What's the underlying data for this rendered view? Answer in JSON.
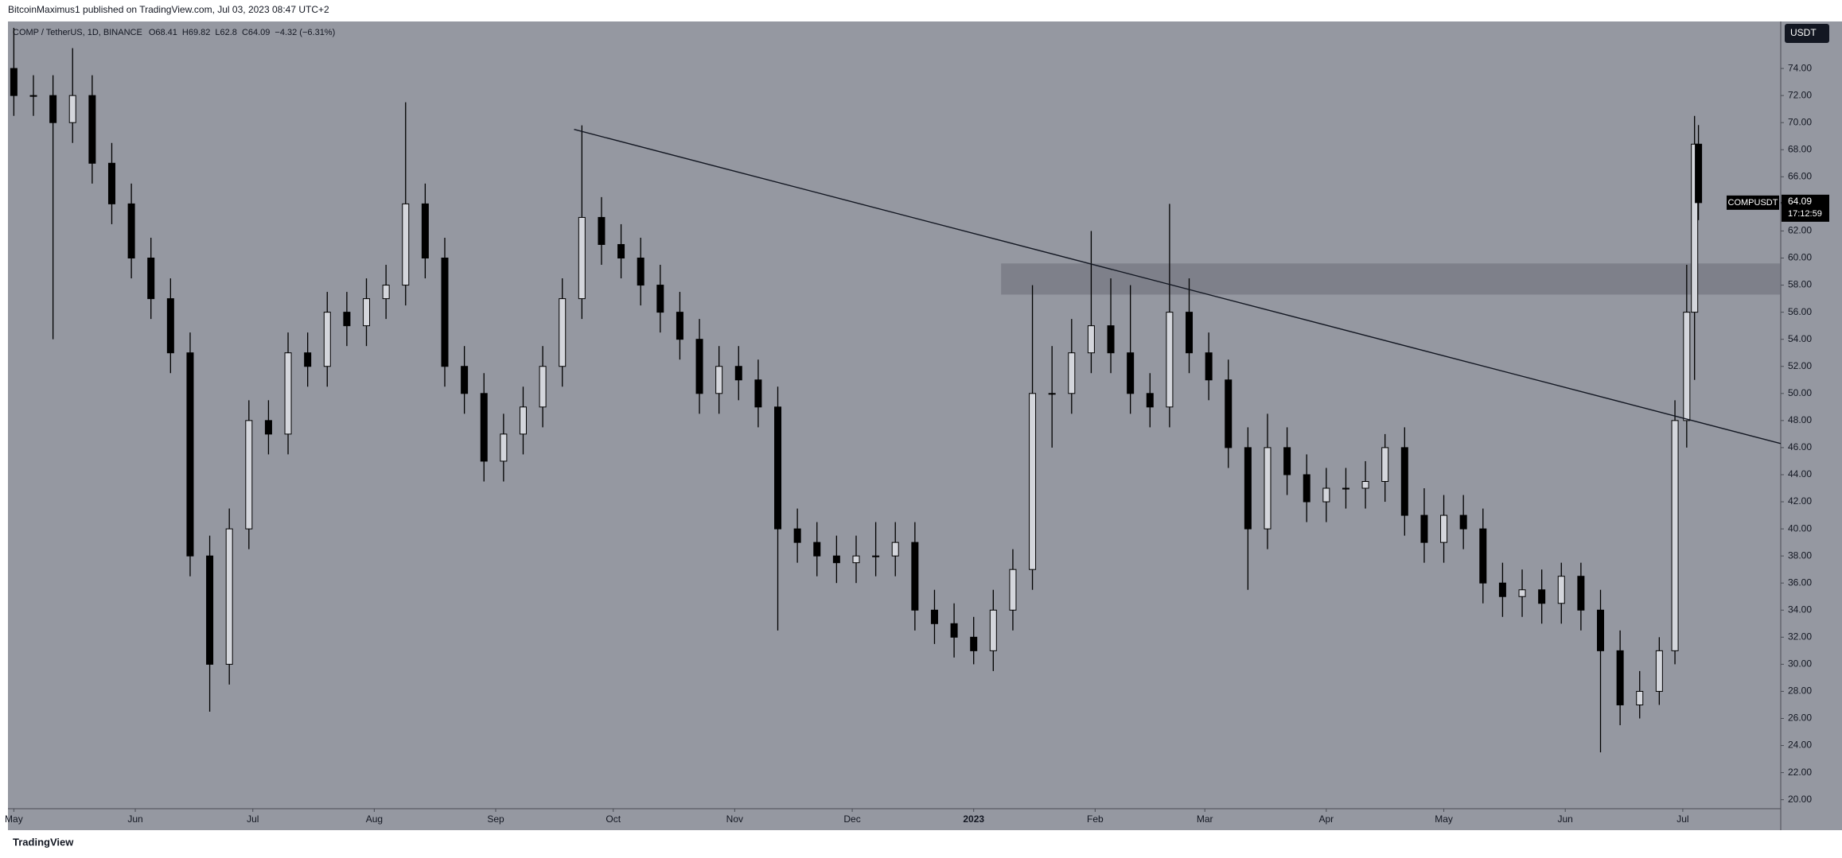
{
  "chart_data": {
    "type": "candlestick",
    "header": "BitcoinMaximus1 published on TradingView.com, Jul 03, 2023 08:47 UTC+2",
    "legend": {
      "symbol": "COMP / TetherUS, 1D, BINANCE",
      "items": [
        {
          "label": "O",
          "value": 68.41
        },
        {
          "label": "H",
          "value": 69.82
        },
        {
          "label": "L",
          "value": 62.8
        },
        {
          "label": "C",
          "value": 64.09
        }
      ],
      "change": "−4.32 (−6.31%)"
    },
    "currency": "USDT",
    "price_label": {
      "name": "COMPUSDT",
      "value": 64.09,
      "countdown": "17:12:59"
    },
    "footer": "TradingView",
    "background": "#9598a1",
    "up_color": "#d4d6dc",
    "down_color": "#000000",
    "x": [
      0,
      5,
      10,
      15,
      20,
      25,
      30,
      35,
      40,
      45,
      50,
      55,
      60,
      65,
      70,
      75,
      80,
      85,
      90,
      95,
      100,
      105,
      110,
      115,
      120,
      125,
      130,
      135,
      140,
      145,
      150,
      155,
      160,
      165,
      170,
      175,
      180,
      185,
      190,
      195,
      200,
      205,
      210,
      215,
      220,
      225,
      230,
      235,
      240,
      245,
      250,
      255,
      260,
      265,
      270,
      275,
      280,
      285,
      290,
      295,
      300,
      305,
      310,
      315,
      320,
      325,
      330,
      335,
      340,
      345,
      350,
      355,
      360,
      365,
      370,
      375,
      380,
      385,
      390,
      395,
      400,
      405,
      410,
      415,
      420,
      424,
      427,
      429,
      430
    ],
    "open": [
      74,
      72,
      72,
      70,
      72,
      67,
      64,
      60,
      57,
      53,
      38,
      30,
      40,
      48,
      47,
      53,
      52,
      56,
      55,
      57,
      58,
      64,
      60,
      52,
      50,
      45,
      47,
      49,
      52,
      57,
      63,
      61,
      60,
      58,
      56,
      54,
      50,
      52,
      51,
      49,
      40,
      39,
      38,
      37.5,
      38,
      38,
      39,
      34,
      33,
      32,
      31,
      34,
      37,
      50,
      50,
      53,
      55,
      53,
      50,
      49,
      56,
      53,
      51,
      46,
      40,
      46,
      44,
      42,
      43,
      43,
      43.5,
      46,
      41,
      39,
      41,
      40,
      36,
      35,
      35.5,
      34.5,
      36.5,
      34,
      31,
      27,
      28,
      31,
      48,
      56,
      68.41
    ],
    "high": [
      77,
      73.5,
      73.5,
      75.5,
      73.5,
      68.5,
      65.5,
      61.5,
      58.5,
      54.5,
      39.5,
      41.5,
      49.5,
      49.5,
      54.5,
      54.5,
      57.5,
      57.5,
      58.5,
      59.5,
      71.5,
      65.5,
      61.5,
      53.5,
      51.5,
      48.5,
      50.5,
      53.5,
      58.5,
      69.8,
      64.5,
      62.5,
      61.5,
      59.5,
      57.5,
      55.5,
      53.5,
      53.5,
      52.5,
      50.5,
      41.5,
      40.5,
      39.5,
      39.5,
      40.5,
      40.5,
      40.5,
      35.5,
      34.5,
      33.5,
      35.5,
      38.5,
      58,
      53.5,
      55.5,
      62,
      58.5,
      58,
      51.5,
      64,
      58.5,
      54.5,
      52.5,
      47.5,
      48.5,
      47.5,
      45.5,
      44.5,
      44.5,
      45,
      47,
      47.5,
      43,
      42.5,
      42.5,
      41.5,
      37.5,
      37,
      37,
      37.5,
      37.5,
      35.5,
      32.5,
      29.5,
      32,
      49.5,
      59.5,
      70.5,
      69.82
    ],
    "low": [
      70.5,
      70.5,
      54,
      68.5,
      65.5,
      62.5,
      58.5,
      55.5,
      51.5,
      36.5,
      26.5,
      28.5,
      38.5,
      45.5,
      45.5,
      50.5,
      50.5,
      53.5,
      53.5,
      55.5,
      56.5,
      58.5,
      50.5,
      48.5,
      43.5,
      43.5,
      45.5,
      47.5,
      50.5,
      55.5,
      59.5,
      58.5,
      56.5,
      54.5,
      52.5,
      48.5,
      48.5,
      49.5,
      47.5,
      32.5,
      37.5,
      36.5,
      36,
      36,
      36.5,
      36.5,
      32.5,
      31.5,
      30.5,
      30,
      29.5,
      32.5,
      35.5,
      46,
      48.5,
      51.5,
      51.5,
      48.5,
      47.5,
      47.5,
      51.5,
      49.5,
      44.5,
      35.5,
      38.5,
      42.5,
      40.5,
      40.5,
      41.5,
      41.5,
      42,
      39.5,
      37.5,
      37.5,
      38.5,
      34.5,
      33.5,
      33.5,
      33,
      33,
      32.5,
      23.5,
      25.5,
      26,
      27,
      30,
      46,
      51,
      62.8
    ],
    "close": [
      72,
      72,
      70,
      72,
      67,
      64,
      60,
      57,
      53,
      38,
      30,
      40,
      48,
      47,
      53,
      52,
      56,
      55,
      57,
      58,
      64,
      60,
      52,
      50,
      45,
      47,
      49,
      52,
      57,
      63,
      61,
      60,
      58,
      56,
      54,
      50,
      52,
      51,
      49,
      40,
      39,
      38,
      37.5,
      38,
      38,
      39,
      34,
      33,
      32,
      31,
      34,
      37,
      50,
      50,
      53,
      55,
      53,
      50,
      49,
      56,
      53,
      51,
      46,
      40,
      46,
      44,
      42,
      43,
      43,
      43.5,
      46,
      41,
      39,
      41,
      40,
      36,
      35,
      35.5,
      34.5,
      36.5,
      34,
      31,
      27,
      28,
      31,
      48,
      56,
      68.41,
      64.09
    ],
    "xlim": [
      -1.5,
      451
    ],
    "ylim": [
      17.75,
      77.47
    ],
    "xticks": [
      {
        "value": 0,
        "label": "May"
      },
      {
        "value": 31,
        "label": "Jun"
      },
      {
        "value": 61,
        "label": "Jul"
      },
      {
        "value": 92,
        "label": "Aug"
      },
      {
        "value": 123,
        "label": "Sep"
      },
      {
        "value": 153,
        "label": "Oct"
      },
      {
        "value": 184,
        "label": "Nov"
      },
      {
        "value": 214,
        "label": "Dec"
      },
      {
        "value": 245,
        "label": "2023"
      },
      {
        "value": 276,
        "label": "Feb"
      },
      {
        "value": 304,
        "label": "Mar"
      },
      {
        "value": 335,
        "label": "Apr"
      },
      {
        "value": 365,
        "label": "May"
      },
      {
        "value": 396,
        "label": "Jun"
      },
      {
        "value": 426,
        "label": "Jul"
      }
    ],
    "yticks": [
      {
        "value": 20,
        "label": "20.00"
      },
      {
        "value": 22,
        "label": "22.00"
      },
      {
        "value": 24,
        "label": "24.00"
      },
      {
        "value": 26,
        "label": "26.00"
      },
      {
        "value": 28,
        "label": "28.00"
      },
      {
        "value": 30,
        "label": "30.00"
      },
      {
        "value": 32,
        "label": "32.00"
      },
      {
        "value": 34,
        "label": "34.00"
      },
      {
        "value": 36,
        "label": "36.00"
      },
      {
        "value": 38,
        "label": "38.00"
      },
      {
        "value": 40,
        "label": "40.00"
      },
      {
        "value": 42,
        "label": "42.00"
      },
      {
        "value": 44,
        "label": "44.00"
      },
      {
        "value": 46,
        "label": "46.00"
      },
      {
        "value": 48,
        "label": "48.00"
      },
      {
        "value": 50,
        "label": "50.00"
      },
      {
        "value": 52,
        "label": "52.00"
      },
      {
        "value": 54,
        "label": "54.00"
      },
      {
        "value": 56,
        "label": "56.00"
      },
      {
        "value": 58,
        "label": "58.00"
      },
      {
        "value": 60,
        "label": "60.00"
      },
      {
        "value": 62,
        "label": "62.00"
      },
      {
        "value": 64,
        "label": "64.00"
      },
      {
        "value": 66,
        "label": "66.00"
      },
      {
        "value": 68,
        "label": "68.00"
      },
      {
        "value": 70,
        "label": "70.00"
      },
      {
        "value": 72,
        "label": "72.00"
      },
      {
        "value": 74,
        "label": "74.00"
      }
    ],
    "trendline": {
      "x": [
        143,
        451
      ],
      "y": [
        69.5,
        46.3
      ]
    },
    "zone": {
      "x": [
        252,
        451
      ],
      "y": [
        57.3,
        59.6
      ]
    }
  }
}
